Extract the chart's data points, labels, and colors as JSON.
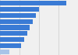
{
  "values": [
    22,
    13,
    12,
    11,
    10,
    9,
    8,
    7,
    3
  ],
  "bar_color": "#3a7bd5",
  "last_bar_color": "#a8c4e8",
  "background_color": "#f0f0f0",
  "xlim": [
    0,
    26
  ],
  "bar_height": 0.78,
  "figsize": [
    1.0,
    0.71
  ],
  "dpi": 100
}
